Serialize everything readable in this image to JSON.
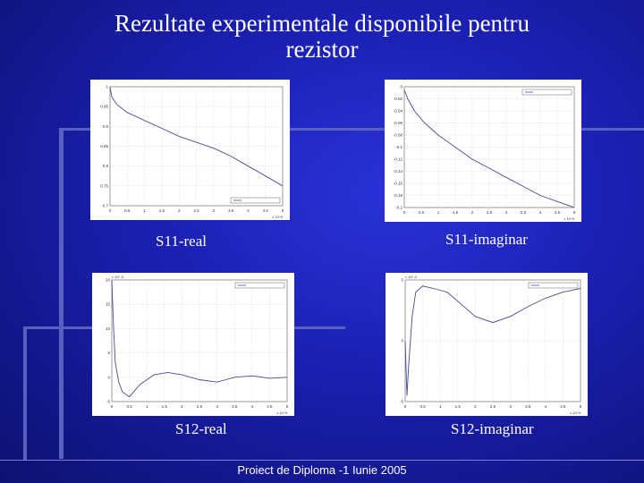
{
  "slide": {
    "title_line1": "Rezultate experimentale disponibile pentru",
    "title_line2": "rezistor",
    "footer": "Proiect de Diploma -1 Iunie 2005"
  },
  "captions": {
    "s11_real": "S11-real",
    "s11_imag": "S11-imaginar",
    "s12_real": "S12-real",
    "s12_imag": "S12-imaginar"
  },
  "colors": {
    "background": "#1a1fb0",
    "line": "#4a4a9a"
  },
  "chart_data": [
    {
      "type": "line",
      "name_caption": "S11-real",
      "x_unit_exp": "x 10^9",
      "xlim": [
        0,
        5
      ],
      "ylim": [
        0.7,
        1
      ],
      "x_ticks": [
        "0",
        "0.5",
        "1",
        "1.5",
        "2",
        "2.5",
        "3",
        "3.5",
        "4",
        "4.5",
        "5"
      ],
      "y_ticks": [
        "0.7",
        "0.75",
        "0.8",
        "0.85",
        "0.9",
        "0.95",
        "1"
      ],
      "grid": true,
      "legend": "bottom-right",
      "x": [
        0,
        0.05,
        0.2,
        0.5,
        1,
        1.5,
        2,
        2.5,
        3,
        3.5,
        4,
        4.5,
        5
      ],
      "y": [
        1.0,
        0.975,
        0.955,
        0.935,
        0.915,
        0.895,
        0.875,
        0.86,
        0.845,
        0.825,
        0.8,
        0.775,
        0.75
      ]
    },
    {
      "type": "line",
      "name_caption": "S11-imaginar",
      "x_unit_exp": "x 10^9",
      "xlim": [
        0,
        5
      ],
      "ylim": [
        -0.2,
        0
      ],
      "x_ticks": [
        "0",
        "0.5",
        "1",
        "1.5",
        "2",
        "2.5",
        "3",
        "3.5",
        "4",
        "4.5",
        "5"
      ],
      "y_ticks": [
        "-0.2",
        "-0.18",
        "-0.16",
        "-0.14",
        "-0.12",
        "-0.1",
        "-0.08",
        "-0.06",
        "-0.04",
        "-0.02",
        "0"
      ],
      "grid": true,
      "legend": "top-right",
      "x": [
        0,
        0.1,
        0.3,
        0.6,
        1,
        1.5,
        2,
        2.5,
        3,
        3.5,
        4,
        4.5,
        5
      ],
      "y": [
        -0.005,
        -0.02,
        -0.04,
        -0.06,
        -0.08,
        -0.1,
        -0.12,
        -0.135,
        -0.15,
        -0.165,
        -0.18,
        -0.19,
        -0.2
      ]
    },
    {
      "type": "line",
      "name_caption": "S12-real",
      "x_unit_exp": "x 10^9",
      "xlim": [
        0,
        5
      ],
      "ylim": [
        -5,
        20
      ],
      "y_exp": "x 10^-3",
      "x_ticks": [
        "0",
        "0.5",
        "1",
        "1.5",
        "2",
        "2.5",
        "3",
        "3.5",
        "4",
        "4.5",
        "5"
      ],
      "y_ticks": [
        "-5",
        "0",
        "5",
        "10",
        "15",
        "20"
      ],
      "grid": true,
      "legend": "top-right",
      "x": [
        0,
        0.05,
        0.1,
        0.2,
        0.3,
        0.5,
        0.8,
        1.2,
        1.6,
        2,
        2.5,
        3,
        3.5,
        4,
        4.5,
        5
      ],
      "y": [
        20,
        10,
        3,
        -1,
        -3,
        -4,
        -1.5,
        0.5,
        1,
        0.5,
        -0.5,
        -1,
        0,
        0.3,
        -0.2,
        0
      ]
    },
    {
      "type": "line",
      "name_caption": "S12-imaginar",
      "x_unit_exp": "x 10^9",
      "xlim": [
        0,
        5
      ],
      "ylim": [
        -5,
        5
      ],
      "y_exp": "x 10^-3",
      "x_ticks": [
        "0",
        "0.5",
        "1",
        "1.5",
        "2",
        "2.5",
        "3",
        "3.5",
        "4",
        "4.5",
        "5"
      ],
      "y_ticks": [
        "-5",
        "0",
        "5"
      ],
      "grid": true,
      "legend": "top-right",
      "x": [
        0,
        0.05,
        0.1,
        0.2,
        0.3,
        0.5,
        0.8,
        1.2,
        1.6,
        2,
        2.5,
        3,
        3.5,
        4,
        4.5,
        5
      ],
      "y": [
        0,
        -4.5,
        -2,
        2,
        4,
        4.5,
        4.3,
        4,
        3,
        2,
        1.5,
        2,
        2.8,
        3.5,
        4,
        4.3
      ]
    }
  ]
}
